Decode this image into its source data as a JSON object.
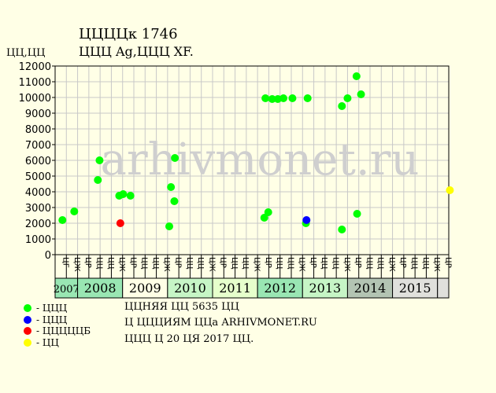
{
  "header": {
    "title_line1": "ЦЦЦЦк 1746",
    "title_line2": "ЦЦЦ Ag,ЦЦЦ XF.",
    "y_unit": "ЦЦ,ЦЦ"
  },
  "chart_data": {
    "type": "scatter",
    "watermark": "arhivmonet.ru",
    "ylim": [
      0,
      12000
    ],
    "y_ticks": [
      0,
      1000,
      2000,
      3000,
      4000,
      5000,
      6000,
      7000,
      8000,
      9000,
      10000,
      11000,
      12000
    ],
    "x_slot_count": 35,
    "x_slot_labels": [
      "ЦГ",
      "ЦЖ",
      "ЦР",
      "ЦЦ",
      "ЦЦ",
      "ЦЖ",
      "ЦР",
      "ЦЦ",
      "ЦЦ",
      "ЦЖ",
      "ЦР",
      "ЦЦ",
      "ЦЦ",
      "ЦЖ",
      "ЦР",
      "ЦЦ",
      "ЦЦ",
      "ЦЖ",
      "ЦР",
      "ЦЦ",
      "ЦЦ",
      "ЦЖ",
      "ЦР",
      "ЦЦ",
      "ЦЦ",
      "ЦЖ",
      "ЦР",
      "ЦЦ",
      "ЦЦ",
      "ЦЖ",
      "ЦР",
      "ЦЦ",
      "ЦЦ",
      "ЦЖ",
      "ЦР"
    ],
    "years": [
      {
        "label": "2007",
        "start": 0,
        "end": 2,
        "color": "#99e6b3"
      },
      {
        "label": "2008",
        "start": 2,
        "end": 6,
        "color": "#99e6b3"
      },
      {
        "label": "2009",
        "start": 6,
        "end": 10,
        "color": "#ffffe6"
      },
      {
        "label": "2010",
        "start": 10,
        "end": 14,
        "color": "#c6f5c6"
      },
      {
        "label": "2011",
        "start": 14,
        "end": 18,
        "color": "#e6ffcc"
      },
      {
        "label": "2012",
        "start": 18,
        "end": 22,
        "color": "#99e6b3"
      },
      {
        "label": "2013",
        "start": 22,
        "end": 26,
        "color": "#c6f5c6"
      },
      {
        "label": "2014",
        "start": 26,
        "end": 30,
        "color": "#b3c4b3"
      },
      {
        "label": "2015",
        "start": 30,
        "end": 34,
        "color": "#e0e0dc"
      }
    ],
    "series": [
      {
        "name": "ЦЦЦ",
        "color": "#00ff00",
        "points": [
          {
            "x": 0.15,
            "y": 2200
          },
          {
            "x": 1.2,
            "y": 2750
          },
          {
            "x": 3.3,
            "y": 4750
          },
          {
            "x": 3.45,
            "y": 6000
          },
          {
            "x": 5.2,
            "y": 3750
          },
          {
            "x": 5.55,
            "y": 3850
          },
          {
            "x": 6.2,
            "y": 3750
          },
          {
            "x": 9.65,
            "y": 1800
          },
          {
            "x": 9.8,
            "y": 4300
          },
          {
            "x": 10.1,
            "y": 3400
          },
          {
            "x": 10.15,
            "y": 6150
          },
          {
            "x": 18.1,
            "y": 2350
          },
          {
            "x": 18.45,
            "y": 2700
          },
          {
            "x": 18.2,
            "y": 9950
          },
          {
            "x": 18.8,
            "y": 9900
          },
          {
            "x": 19.3,
            "y": 9900
          },
          {
            "x": 19.8,
            "y": 9950
          },
          {
            "x": 20.6,
            "y": 9950
          },
          {
            "x": 21.8,
            "y": 2000
          },
          {
            "x": 21.95,
            "y": 9950
          },
          {
            "x": 25.0,
            "y": 1600
          },
          {
            "x": 25.0,
            "y": 9450
          },
          {
            "x": 25.5,
            "y": 9950
          },
          {
            "x": 26.3,
            "y": 11350
          },
          {
            "x": 26.35,
            "y": 2600
          },
          {
            "x": 26.7,
            "y": 10200
          }
        ]
      },
      {
        "name": "ЦЦЦ",
        "color": "#0000ff",
        "points": [
          {
            "x": 21.85,
            "y": 2200
          }
        ]
      },
      {
        "name": "ЦЦЦЦЦБ",
        "color": "#ff0000",
        "points": [
          {
            "x": 5.3,
            "y": 2000
          }
        ]
      },
      {
        "name": "ЦЦ",
        "color": "#ffff00",
        "points": [
          {
            "x": 34.6,
            "y": 4100
          }
        ]
      }
    ]
  },
  "legend": [
    {
      "label": "- ЦЦЦ",
      "color": "#00ff00"
    },
    {
      "label": "- ЦЦЦ",
      "color": "#0000ff"
    },
    {
      "label": "- ЦЦЦЦЦБ",
      "color": "#ff0000"
    },
    {
      "label": "- ЦЦ",
      "color": "#ffff00"
    }
  ],
  "notes": {
    "line1": "ЦЦНЯЯ ЦЦ 5635 ЦЦ",
    "line2": "Ц ЦЦЦИЯМ ЦЦа ARHIVMONET.RU",
    "line3": "ЦЦЦ Ц 20 ЦЯ 2017 ЦЦ."
  }
}
